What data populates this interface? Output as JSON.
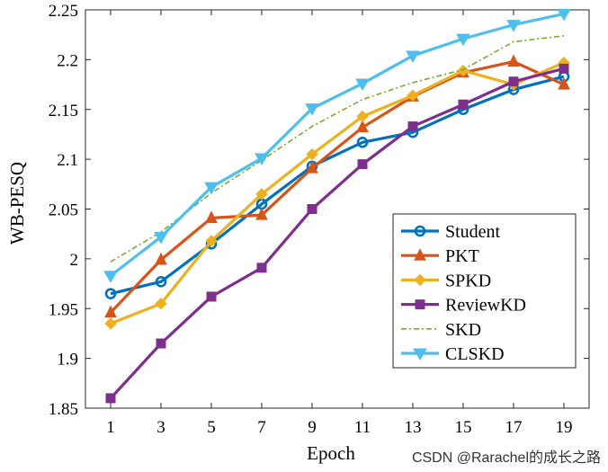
{
  "chart_data": {
    "type": "line",
    "title": "",
    "xlabel": "Epoch",
    "ylabel": "WB-PESQ",
    "x": [
      1,
      3,
      5,
      7,
      9,
      11,
      13,
      15,
      17,
      19
    ],
    "xlim": [
      0,
      20
    ],
    "ylim": [
      1.85,
      2.25
    ],
    "xticks": [
      "1",
      "3",
      "5",
      "7",
      "9",
      "11",
      "13",
      "15",
      "17",
      "19"
    ],
    "yticks": [
      "1.85",
      "1.9",
      "1.95",
      "2",
      "2.05",
      "2.1",
      "2.15",
      "2.2",
      "2.25"
    ],
    "ytick_values": [
      1.85,
      1.9,
      1.95,
      2.0,
      2.05,
      2.1,
      2.15,
      2.2,
      2.25
    ],
    "grid": false,
    "legend_position": "lower-right",
    "series": [
      {
        "name": "Student",
        "color": "#0072BD",
        "marker": "circle",
        "style": "solid",
        "values": [
          1.965,
          1.977,
          2.015,
          2.055,
          2.093,
          2.117,
          2.127,
          2.15,
          2.17,
          2.183
        ]
      },
      {
        "name": "PKT",
        "color": "#D95319",
        "marker": "triangle-up",
        "style": "solid",
        "values": [
          1.946,
          1.999,
          2.041,
          2.044,
          2.091,
          2.132,
          2.163,
          2.187,
          2.198,
          2.175
        ]
      },
      {
        "name": "SPKD",
        "color": "#EDB120",
        "marker": "diamond",
        "style": "solid",
        "values": [
          1.935,
          1.955,
          2.018,
          2.065,
          2.105,
          2.143,
          2.164,
          2.189,
          2.175,
          2.197
        ]
      },
      {
        "name": "ReviewKD",
        "color": "#7E2F8E",
        "marker": "square",
        "style": "solid",
        "values": [
          1.86,
          1.915,
          1.962,
          1.991,
          2.05,
          2.095,
          2.133,
          2.155,
          2.178,
          2.191
        ]
      },
      {
        "name": "SKD",
        "color": "#77AC30",
        "marker": "none",
        "style": "dashdot",
        "values": [
          1.997,
          2.027,
          2.066,
          2.099,
          2.133,
          2.16,
          2.177,
          2.19,
          2.218,
          2.224
        ]
      },
      {
        "name": "CLSKD",
        "color": "#4DBEEE",
        "marker": "triangle-down",
        "style": "solid",
        "values": [
          1.983,
          2.022,
          2.072,
          2.101,
          2.151,
          2.176,
          2.204,
          2.221,
          2.235,
          2.246
        ]
      }
    ]
  },
  "watermark": "CSDN @Rarachel的成长之路"
}
